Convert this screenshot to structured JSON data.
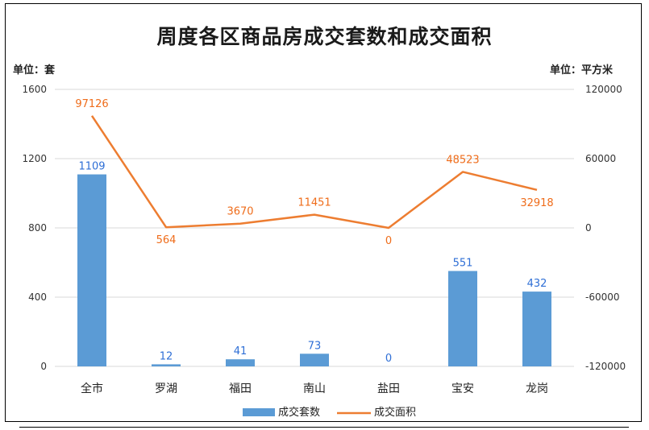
{
  "title": "周度各区商品房成交套数和成交面积",
  "unit_left": "单位：套",
  "unit_right": "单位：平方米",
  "colors": {
    "bar": "#5b9bd5",
    "line": "#ed7d31",
    "bar_label": "#2f6fd6",
    "line_label": "#ef6c1a"
  },
  "chart_data": {
    "type": "bar+line",
    "categories": [
      "全市",
      "罗湖",
      "福田",
      "南山",
      "盐田",
      "宝安",
      "龙岗"
    ],
    "series": [
      {
        "name": "成交套数",
        "type": "bar",
        "axis": "left",
        "values": [
          1109,
          12,
          41,
          73,
          0,
          551,
          432
        ]
      },
      {
        "name": "成交面积",
        "type": "line",
        "axis": "right",
        "values": [
          97126,
          564,
          3670,
          11451,
          0,
          48523,
          32918
        ]
      }
    ],
    "y_left": {
      "min": 0,
      "max": 1600,
      "ticks": [
        "0",
        "400",
        "800",
        "1200",
        "1600"
      ]
    },
    "y_right": {
      "min": -120000,
      "max": 120000,
      "ticks": [
        "-120000",
        "-60000",
        "0",
        "60000",
        "120000"
      ]
    },
    "grid": true,
    "legend_position": "bottom"
  }
}
